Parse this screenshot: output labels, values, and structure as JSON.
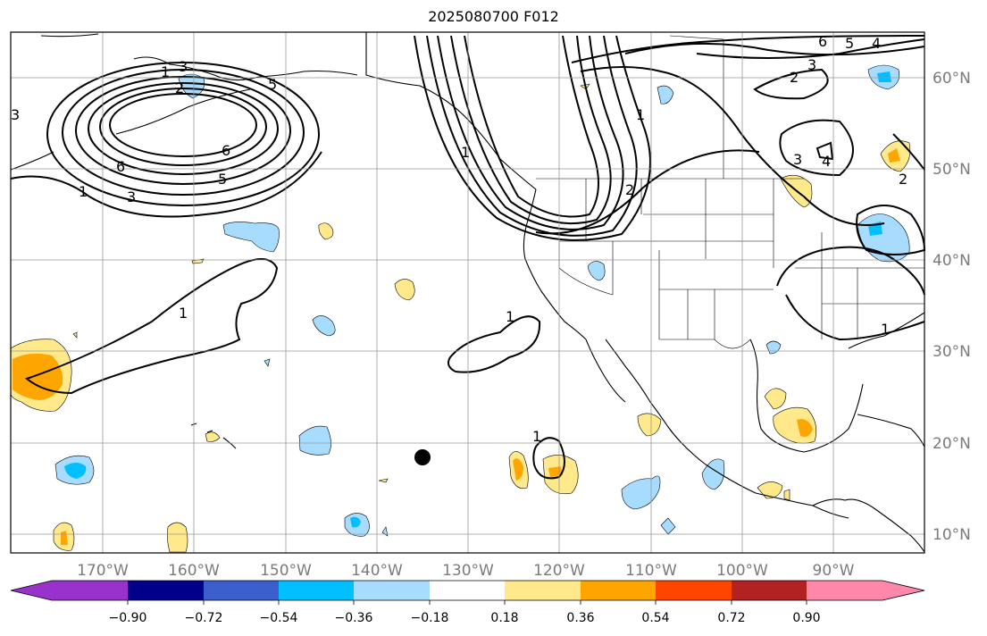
{
  "title": "2025080700 F012",
  "map": {
    "lon_ticks": [
      "170°W",
      "160°W",
      "150°W",
      "140°W",
      "130°W",
      "120°W",
      "110°W",
      "100°W",
      "90°W"
    ],
    "lat_ticks": [
      "60°N",
      "50°N",
      "40°N",
      "30°N",
      "20°N",
      "10°N"
    ],
    "contour_labels": [
      "1",
      "2",
      "3",
      "5",
      "6",
      "1",
      "3",
      "6",
      "5",
      "3",
      "1",
      "1",
      "1",
      "2",
      "1",
      "1",
      "3",
      "4",
      "2",
      "6",
      "5",
      "4",
      "3",
      "2",
      "1"
    ]
  },
  "colorbar": {
    "tick_labels": [
      "−0.90",
      "−0.72",
      "−0.54",
      "−0.36",
      "−0.18",
      "0.18",
      "0.36",
      "0.54",
      "0.72",
      "0.90"
    ],
    "colors": [
      "#9932cc",
      "#00008b",
      "#3a5fcd",
      "#00bfff",
      "#a8dcff",
      "#ffffff",
      "#ffe98a",
      "#ffa500",
      "#ff4500",
      "#b22222",
      "#ff88aa"
    ]
  },
  "colors": {
    "neg_light": "#a8dcff",
    "neg_mid": "#00bfff",
    "pos_light": "#ffe98a",
    "pos_mid": "#ffa500",
    "grid": "#999999",
    "contour": "#000000"
  }
}
